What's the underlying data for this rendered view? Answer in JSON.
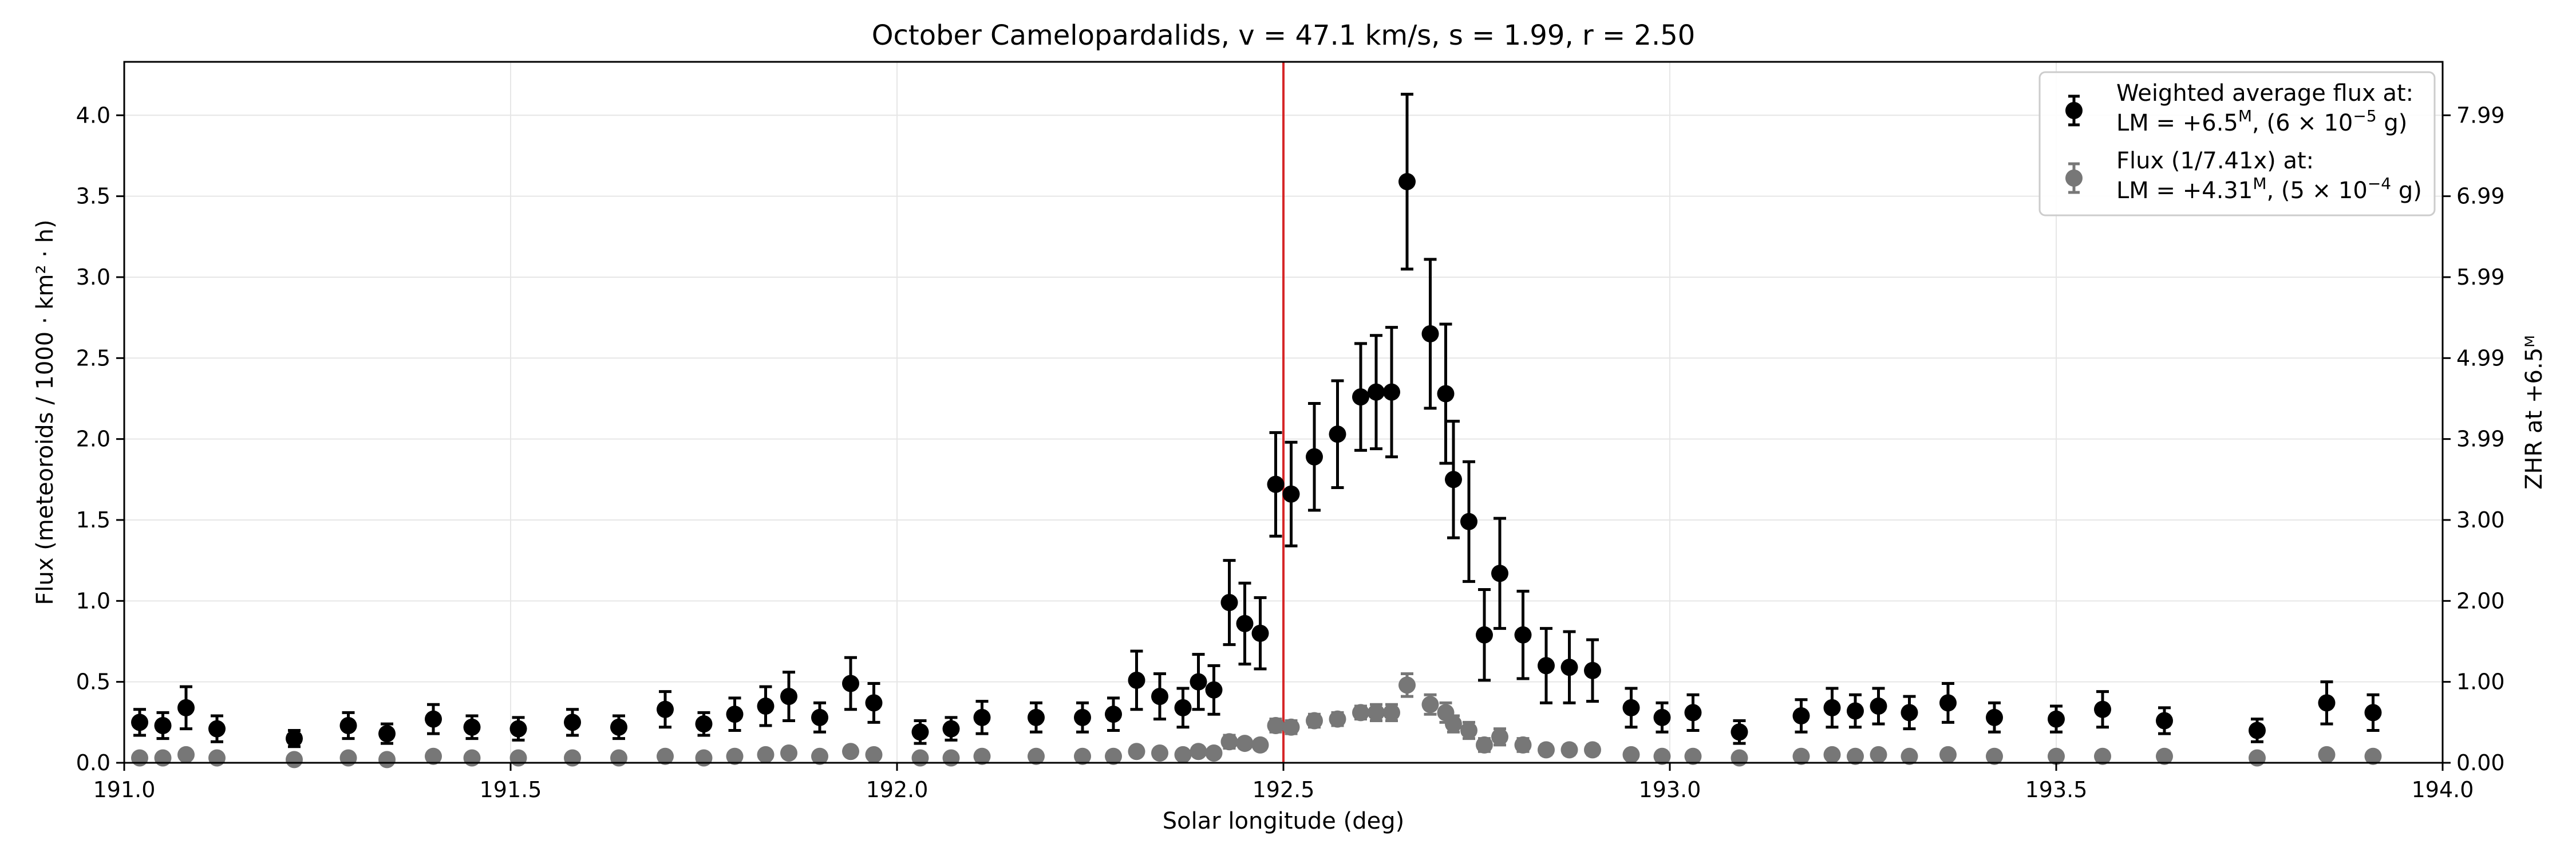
{
  "chart_data": {
    "type": "scatter",
    "title": "October Camelopardalids, v = 47.1 km/s, s = 1.99, r = 2.50",
    "xlabel": "Solar longitude (deg)",
    "ylabel": "Flux (meteoroids / 1000 · km² · h)",
    "y2label": "ZHR at +6.5ᴹ",
    "xlim": [
      191.0,
      194.0
    ],
    "ylim": [
      0.0,
      4.33
    ],
    "grid": true,
    "legend_position": "top-right",
    "x_ticks": [
      "191.0",
      "191.5",
      "192.0",
      "192.5",
      "193.0",
      "193.5",
      "194.0"
    ],
    "y_ticks": [
      "0.0",
      "0.5",
      "1.0",
      "1.5",
      "2.0",
      "2.5",
      "3.0",
      "3.5",
      "4.0"
    ],
    "y2_ticks": [
      "0.00",
      "1.00",
      "2.00",
      "3.00",
      "3.99",
      "4.99",
      "5.99",
      "6.99",
      "7.99"
    ],
    "y2_tick_flux": [
      0.0,
      0.5,
      1.0,
      1.5,
      2.0,
      2.5,
      3.0,
      3.5,
      4.0
    ],
    "vline": {
      "x": 192.5,
      "color": "#d62728"
    },
    "series": [
      {
        "name_line1": "Weighted average flux at:",
        "name_line2_prefix": "LM = +6.5",
        "name_line2_sup": "M",
        "name_line2_mid": ", (6 × 10",
        "name_line2_exp": "−5",
        "name_line2_suffix": " g)",
        "color": "#000000",
        "points": [
          {
            "x": 191.02,
            "y": 0.25,
            "e": 0.08
          },
          {
            "x": 191.05,
            "y": 0.23,
            "e": 0.08
          },
          {
            "x": 191.08,
            "y": 0.34,
            "e": 0.13
          },
          {
            "x": 191.12,
            "y": 0.21,
            "e": 0.08
          },
          {
            "x": 191.22,
            "y": 0.15,
            "e": 0.05
          },
          {
            "x": 191.29,
            "y": 0.23,
            "e": 0.08
          },
          {
            "x": 191.34,
            "y": 0.18,
            "e": 0.06
          },
          {
            "x": 191.4,
            "y": 0.27,
            "e": 0.09
          },
          {
            "x": 191.45,
            "y": 0.22,
            "e": 0.07
          },
          {
            "x": 191.51,
            "y": 0.21,
            "e": 0.07
          },
          {
            "x": 191.58,
            "y": 0.25,
            "e": 0.08
          },
          {
            "x": 191.64,
            "y": 0.22,
            "e": 0.07
          },
          {
            "x": 191.7,
            "y": 0.33,
            "e": 0.11
          },
          {
            "x": 191.75,
            "y": 0.24,
            "e": 0.07
          },
          {
            "x": 191.79,
            "y": 0.3,
            "e": 0.1
          },
          {
            "x": 191.83,
            "y": 0.35,
            "e": 0.12
          },
          {
            "x": 191.86,
            "y": 0.41,
            "e": 0.15
          },
          {
            "x": 191.9,
            "y": 0.28,
            "e": 0.09
          },
          {
            "x": 191.94,
            "y": 0.49,
            "e": 0.16
          },
          {
            "x": 191.97,
            "y": 0.37,
            "e": 0.12
          },
          {
            "x": 192.03,
            "y": 0.19,
            "e": 0.07
          },
          {
            "x": 192.07,
            "y": 0.21,
            "e": 0.07
          },
          {
            "x": 192.11,
            "y": 0.28,
            "e": 0.1
          },
          {
            "x": 192.18,
            "y": 0.28,
            "e": 0.09
          },
          {
            "x": 192.24,
            "y": 0.28,
            "e": 0.09
          },
          {
            "x": 192.28,
            "y": 0.3,
            "e": 0.1
          },
          {
            "x": 192.31,
            "y": 0.51,
            "e": 0.18
          },
          {
            "x": 192.34,
            "y": 0.41,
            "e": 0.14
          },
          {
            "x": 192.37,
            "y": 0.34,
            "e": 0.12
          },
          {
            "x": 192.39,
            "y": 0.5,
            "e": 0.17
          },
          {
            "x": 192.41,
            "y": 0.45,
            "e": 0.15
          },
          {
            "x": 192.43,
            "y": 0.99,
            "e": 0.26
          },
          {
            "x": 192.45,
            "y": 0.86,
            "e": 0.25
          },
          {
            "x": 192.47,
            "y": 0.8,
            "e": 0.22
          },
          {
            "x": 192.49,
            "y": 1.72,
            "e": 0.32
          },
          {
            "x": 192.51,
            "y": 1.66,
            "e": 0.32
          },
          {
            "x": 192.54,
            "y": 1.89,
            "e": 0.33
          },
          {
            "x": 192.57,
            "y": 2.03,
            "e": 0.33
          },
          {
            "x": 192.6,
            "y": 2.26,
            "e": 0.33
          },
          {
            "x": 192.62,
            "y": 2.29,
            "e": 0.35
          },
          {
            "x": 192.64,
            "y": 2.29,
            "e": 0.4
          },
          {
            "x": 192.66,
            "y": 3.59,
            "e": 0.54
          },
          {
            "x": 192.69,
            "y": 2.65,
            "e": 0.46
          },
          {
            "x": 192.71,
            "y": 2.28,
            "e": 0.43
          },
          {
            "x": 192.72,
            "y": 1.75,
            "e": 0.36
          },
          {
            "x": 192.74,
            "y": 1.49,
            "e": 0.37
          },
          {
            "x": 192.76,
            "y": 0.79,
            "e": 0.28
          },
          {
            "x": 192.78,
            "y": 1.17,
            "e": 0.34
          },
          {
            "x": 192.81,
            "y": 0.79,
            "e": 0.27
          },
          {
            "x": 192.84,
            "y": 0.6,
            "e": 0.23
          },
          {
            "x": 192.87,
            "y": 0.59,
            "e": 0.22
          },
          {
            "x": 192.9,
            "y": 0.57,
            "e": 0.19
          },
          {
            "x": 192.95,
            "y": 0.34,
            "e": 0.12
          },
          {
            "x": 192.99,
            "y": 0.28,
            "e": 0.09
          },
          {
            "x": 193.03,
            "y": 0.31,
            "e": 0.11
          },
          {
            "x": 193.09,
            "y": 0.19,
            "e": 0.07
          },
          {
            "x": 193.17,
            "y": 0.29,
            "e": 0.1
          },
          {
            "x": 193.21,
            "y": 0.34,
            "e": 0.12
          },
          {
            "x": 193.24,
            "y": 0.32,
            "e": 0.1
          },
          {
            "x": 193.27,
            "y": 0.35,
            "e": 0.11
          },
          {
            "x": 193.31,
            "y": 0.31,
            "e": 0.1
          },
          {
            "x": 193.36,
            "y": 0.37,
            "e": 0.12
          },
          {
            "x": 193.42,
            "y": 0.28,
            "e": 0.09
          },
          {
            "x": 193.5,
            "y": 0.27,
            "e": 0.08
          },
          {
            "x": 193.56,
            "y": 0.33,
            "e": 0.11
          },
          {
            "x": 193.64,
            "y": 0.26,
            "e": 0.08
          },
          {
            "x": 193.76,
            "y": 0.2,
            "e": 0.07
          },
          {
            "x": 193.85,
            "y": 0.37,
            "e": 0.13
          },
          {
            "x": 193.91,
            "y": 0.31,
            "e": 0.11
          }
        ]
      },
      {
        "name_line1": "Flux (1/7.41x) at:",
        "name_line2_prefix": "LM = +4.31",
        "name_line2_sup": "M",
        "name_line2_mid": ", (5 × 10",
        "name_line2_exp": "−4",
        "name_line2_suffix": " g)",
        "color": "#777777",
        "points": [
          {
            "x": 191.02,
            "y": 0.03,
            "e": 0.01
          },
          {
            "x": 191.05,
            "y": 0.03,
            "e": 0.01
          },
          {
            "x": 191.08,
            "y": 0.05,
            "e": 0.02
          },
          {
            "x": 191.12,
            "y": 0.03,
            "e": 0.01
          },
          {
            "x": 191.22,
            "y": 0.02,
            "e": 0.01
          },
          {
            "x": 191.29,
            "y": 0.03,
            "e": 0.01
          },
          {
            "x": 191.34,
            "y": 0.02,
            "e": 0.01
          },
          {
            "x": 191.4,
            "y": 0.04,
            "e": 0.01
          },
          {
            "x": 191.45,
            "y": 0.03,
            "e": 0.01
          },
          {
            "x": 191.51,
            "y": 0.03,
            "e": 0.01
          },
          {
            "x": 191.58,
            "y": 0.03,
            "e": 0.01
          },
          {
            "x": 191.64,
            "y": 0.03,
            "e": 0.01
          },
          {
            "x": 191.7,
            "y": 0.04,
            "e": 0.01
          },
          {
            "x": 191.75,
            "y": 0.03,
            "e": 0.01
          },
          {
            "x": 191.79,
            "y": 0.04,
            "e": 0.01
          },
          {
            "x": 191.83,
            "y": 0.05,
            "e": 0.02
          },
          {
            "x": 191.86,
            "y": 0.06,
            "e": 0.02
          },
          {
            "x": 191.9,
            "y": 0.04,
            "e": 0.01
          },
          {
            "x": 191.94,
            "y": 0.07,
            "e": 0.02
          },
          {
            "x": 191.97,
            "y": 0.05,
            "e": 0.02
          },
          {
            "x": 192.03,
            "y": 0.03,
            "e": 0.01
          },
          {
            "x": 192.07,
            "y": 0.03,
            "e": 0.01
          },
          {
            "x": 192.11,
            "y": 0.04,
            "e": 0.01
          },
          {
            "x": 192.18,
            "y": 0.04,
            "e": 0.01
          },
          {
            "x": 192.24,
            "y": 0.04,
            "e": 0.01
          },
          {
            "x": 192.28,
            "y": 0.04,
            "e": 0.01
          },
          {
            "x": 192.31,
            "y": 0.07,
            "e": 0.02
          },
          {
            "x": 192.34,
            "y": 0.06,
            "e": 0.02
          },
          {
            "x": 192.37,
            "y": 0.05,
            "e": 0.02
          },
          {
            "x": 192.39,
            "y": 0.07,
            "e": 0.02
          },
          {
            "x": 192.41,
            "y": 0.06,
            "e": 0.02
          },
          {
            "x": 192.43,
            "y": 0.13,
            "e": 0.04
          },
          {
            "x": 192.45,
            "y": 0.12,
            "e": 0.03
          },
          {
            "x": 192.47,
            "y": 0.11,
            "e": 0.03
          },
          {
            "x": 192.49,
            "y": 0.23,
            "e": 0.04
          },
          {
            "x": 192.51,
            "y": 0.22,
            "e": 0.04
          },
          {
            "x": 192.54,
            "y": 0.26,
            "e": 0.04
          },
          {
            "x": 192.57,
            "y": 0.27,
            "e": 0.04
          },
          {
            "x": 192.6,
            "y": 0.31,
            "e": 0.04
          },
          {
            "x": 192.62,
            "y": 0.31,
            "e": 0.05
          },
          {
            "x": 192.64,
            "y": 0.31,
            "e": 0.05
          },
          {
            "x": 192.66,
            "y": 0.48,
            "e": 0.07
          },
          {
            "x": 192.69,
            "y": 0.36,
            "e": 0.06
          },
          {
            "x": 192.71,
            "y": 0.31,
            "e": 0.06
          },
          {
            "x": 192.72,
            "y": 0.24,
            "e": 0.05
          },
          {
            "x": 192.74,
            "y": 0.2,
            "e": 0.05
          },
          {
            "x": 192.76,
            "y": 0.11,
            "e": 0.04
          },
          {
            "x": 192.78,
            "y": 0.16,
            "e": 0.05
          },
          {
            "x": 192.81,
            "y": 0.11,
            "e": 0.04
          },
          {
            "x": 192.84,
            "y": 0.08,
            "e": 0.03
          },
          {
            "x": 192.87,
            "y": 0.08,
            "e": 0.03
          },
          {
            "x": 192.9,
            "y": 0.08,
            "e": 0.03
          },
          {
            "x": 192.95,
            "y": 0.05,
            "e": 0.02
          },
          {
            "x": 192.99,
            "y": 0.04,
            "e": 0.01
          },
          {
            "x": 193.03,
            "y": 0.04,
            "e": 0.01
          },
          {
            "x": 193.09,
            "y": 0.03,
            "e": 0.01
          },
          {
            "x": 193.17,
            "y": 0.04,
            "e": 0.01
          },
          {
            "x": 193.21,
            "y": 0.05,
            "e": 0.02
          },
          {
            "x": 193.24,
            "y": 0.04,
            "e": 0.01
          },
          {
            "x": 193.27,
            "y": 0.05,
            "e": 0.01
          },
          {
            "x": 193.31,
            "y": 0.04,
            "e": 0.01
          },
          {
            "x": 193.36,
            "y": 0.05,
            "e": 0.02
          },
          {
            "x": 193.42,
            "y": 0.04,
            "e": 0.01
          },
          {
            "x": 193.5,
            "y": 0.04,
            "e": 0.01
          },
          {
            "x": 193.56,
            "y": 0.04,
            "e": 0.01
          },
          {
            "x": 193.64,
            "y": 0.04,
            "e": 0.01
          },
          {
            "x": 193.76,
            "y": 0.03,
            "e": 0.01
          },
          {
            "x": 193.85,
            "y": 0.05,
            "e": 0.02
          },
          {
            "x": 193.91,
            "y": 0.04,
            "e": 0.01
          }
        ]
      }
    ]
  }
}
